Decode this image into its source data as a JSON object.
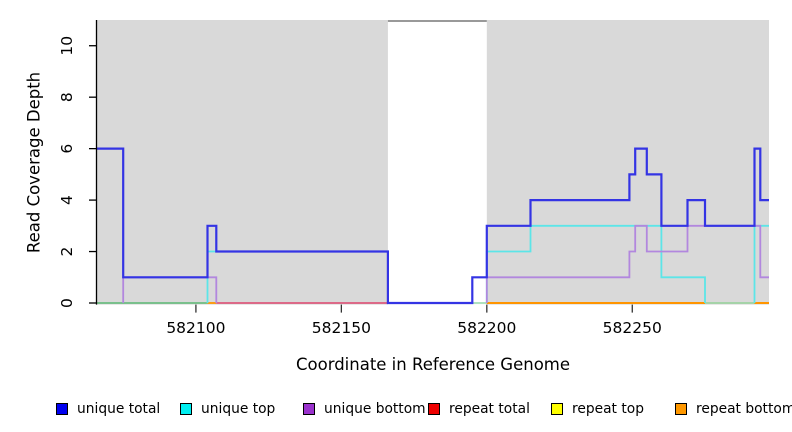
{
  "axes": {
    "x": {
      "label": "Coordinate in Reference Genome",
      "ticks": [
        582100,
        582150,
        582200,
        582250
      ],
      "min": 582066,
      "max": 582297
    },
    "y": {
      "label": "Read Coverage Depth",
      "ticks": [
        0,
        2,
        4,
        6,
        8,
        10
      ],
      "min": 0,
      "max": 11
    }
  },
  "plot": {
    "background": "#d9d9d9",
    "gap_region": {
      "from": 582166,
      "to": 582200,
      "fill": "#ffffff",
      "top_border_color": "#999999"
    }
  },
  "chart_data": {
    "type": "line",
    "step": true,
    "title": "",
    "xlabel": "Coordinate in Reference Genome",
    "ylabel": "Read Coverage Depth",
    "xlim": [
      582066,
      582297
    ],
    "ylim": [
      0,
      11
    ],
    "grid": false,
    "legend_position": "bottom",
    "series": [
      {
        "name": "unique total",
        "color": "#3434e4",
        "legend_color": "#0000f0",
        "width": 2.2,
        "draw_zero_runs": true,
        "steps": [
          [
            582066,
            6
          ],
          [
            582075,
            1
          ],
          [
            582104,
            3
          ],
          [
            582107,
            2
          ],
          [
            582166,
            0
          ],
          [
            582195,
            1
          ],
          [
            582200,
            3
          ],
          [
            582215,
            4
          ],
          [
            582249,
            5
          ],
          [
            582251,
            6
          ],
          [
            582255,
            5
          ],
          [
            582260,
            3
          ],
          [
            582269,
            4
          ],
          [
            582275,
            3
          ],
          [
            582292,
            6
          ],
          [
            582294,
            4
          ]
        ],
        "end": 582297
      },
      {
        "name": "unique top",
        "color": "#5ce5e8",
        "legend_color": "#00eef0",
        "width": 1.8,
        "draw_zero_runs": false,
        "steps": [
          [
            582066,
            0
          ],
          [
            582104,
            2
          ],
          [
            582166,
            0
          ],
          [
            582200,
            2
          ],
          [
            582215,
            3
          ],
          [
            582260,
            1
          ],
          [
            582275,
            0
          ],
          [
            582292,
            3
          ]
        ],
        "end": 582297
      },
      {
        "name": "unique bottom",
        "color": "#b287de",
        "legend_color": "#9a32cd",
        "width": 1.8,
        "draw_zero_runs": false,
        "steps": [
          [
            582066,
            0
          ],
          [
            582075,
            1
          ],
          [
            582107,
            0
          ],
          [
            582200,
            1
          ],
          [
            582249,
            2
          ],
          [
            582251,
            3
          ],
          [
            582255,
            2
          ],
          [
            582269,
            3
          ],
          [
            582294,
            1
          ]
        ],
        "end": 582297
      },
      {
        "name": "repeat total",
        "color": "#dc5a7c",
        "legend_color": "#ee0000",
        "width": 1.6,
        "draw_zero_runs": false,
        "steps": [
          [
            582066,
            0
          ]
        ],
        "end": 582297
      },
      {
        "name": "repeat top",
        "color": "#ffff00",
        "legend_color": "#ffff00",
        "width": 1.6,
        "draw_zero_runs": false,
        "steps": [
          [
            582066,
            0
          ]
        ],
        "end": 582297
      },
      {
        "name": "repeat bottom",
        "color": "#ff9500",
        "legend_color": "#ff9800",
        "width": 2.0,
        "draw_zero_runs": false,
        "steps": [
          [
            582066,
            0
          ]
        ],
        "end": 582297
      }
    ],
    "baseline_segments": [
      {
        "from": 582066,
        "to": 582104,
        "color": "#6cbd80",
        "width": 1.7
      },
      {
        "from": 582104,
        "to": 582107,
        "color": "#ff9500",
        "width": 1.8
      },
      {
        "from": 582107,
        "to": 582166,
        "color": "#dc5a7c",
        "width": 1.7
      },
      {
        "from": 582195,
        "to": 582200,
        "color": "#a0ddb4",
        "width": 1.7
      },
      {
        "from": 582200,
        "to": 582297,
        "color": "#ff9500",
        "width": 2.0
      },
      {
        "from": 582275,
        "to": 582292,
        "color": "#98dcc0",
        "width": 1.8
      }
    ]
  },
  "legend": {
    "items": [
      {
        "label": "unique total",
        "color": "#0000f0"
      },
      {
        "label": "unique top",
        "color": "#00eef0"
      },
      {
        "label": "unique bottom",
        "color": "#9a32cd"
      },
      {
        "label": "repeat total",
        "color": "#ee0000"
      },
      {
        "label": "repeat top",
        "color": "#ffff00"
      },
      {
        "label": "repeat bottom",
        "color": "#ff9800"
      }
    ]
  }
}
